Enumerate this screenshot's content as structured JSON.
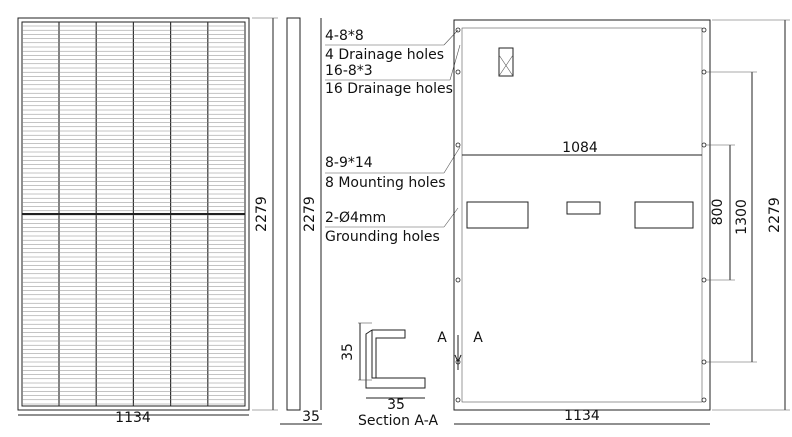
{
  "front": {
    "width_label": "1134",
    "height_label": "2279"
  },
  "side": {
    "height_label": "2279",
    "thickness_label": "35"
  },
  "callouts": [
    {
      "spec": "4-8*8",
      "label": "4 Drainage holes"
    },
    {
      "spec": "16-8*3",
      "label": "16 Drainage holes"
    },
    {
      "spec": "8-9*14",
      "label": "8 Mounting holes"
    },
    {
      "spec": "2-Ø4mm",
      "label": "Grounding holes"
    }
  ],
  "back": {
    "mounting_span_label": "1084",
    "inner_span_label": "800",
    "outer_span_label": "1300",
    "height_label": "2279",
    "width_label": "1134"
  },
  "section": {
    "height_label": "35",
    "width_label": "35",
    "title": "Section A-A",
    "marker_left": "A",
    "marker_right": "A"
  }
}
